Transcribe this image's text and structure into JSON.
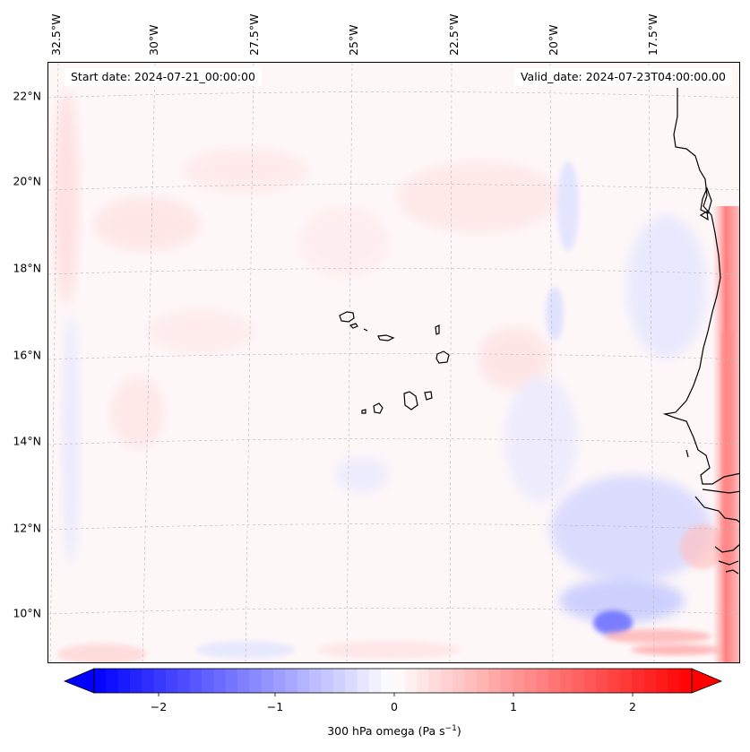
{
  "map": {
    "start_date": "Start date: 2024-07-21_00:00:00",
    "valid_date": "Valid_date: 2024-07-23T04:00:00.00",
    "lon_labels": [
      "32.5°W",
      "30°W",
      "27.5°W",
      "25°W",
      "22.5°W",
      "20°W",
      "17.5°W"
    ],
    "lat_labels": [
      "22°N",
      "20°N",
      "18°N",
      "16°N",
      "14°N",
      "12°N",
      "10°N"
    ],
    "field": "omega",
    "projection": "conic",
    "gridlines": true
  },
  "colorbar": {
    "label_text": "300 hPa omega (Pa s",
    "label_sup": "−1",
    "label_close": ")",
    "ticks": [
      "−2",
      "−1",
      "0",
      "1",
      "2"
    ],
    "range": [
      -2.5,
      2.5
    ],
    "extend": "both",
    "colormap": "bwr",
    "colors": {
      "min": "#0000ff",
      "mid": "#ffffff",
      "max": "#ff0000"
    }
  }
}
